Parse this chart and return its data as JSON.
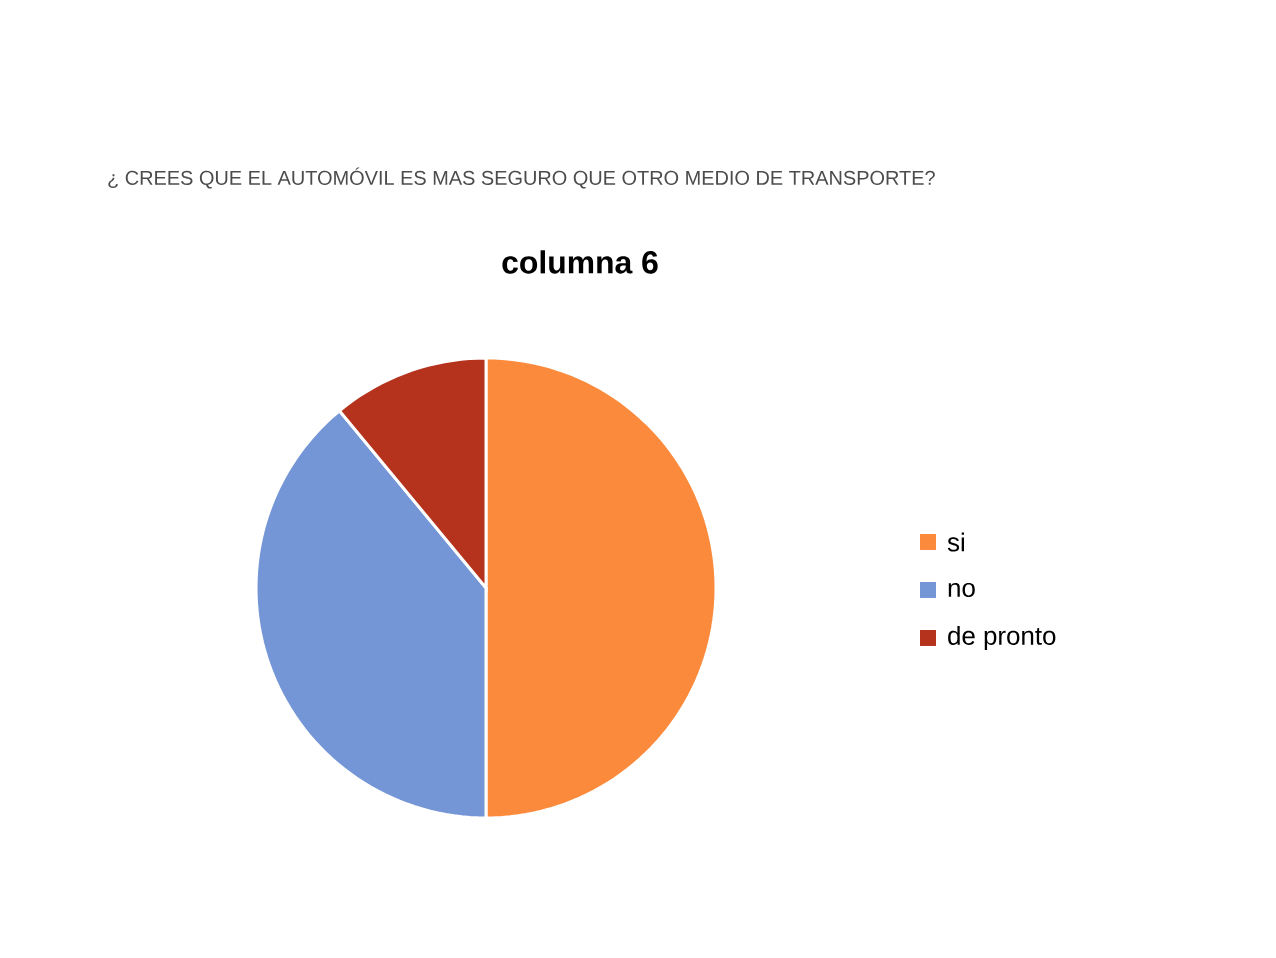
{
  "chart_data": {
    "type": "pie",
    "subtitle": "¿ CREES QUE EL AUTOMÓVIL ES MAS SEGURO QUE OTRO MEDIO DE TRANSPORTE?",
    "title": "columna 6",
    "categories": [
      "si",
      "no",
      "de pronto"
    ],
    "values": [
      50,
      39,
      11
    ],
    "colors": [
      "#fb8a3c",
      "#7596d6",
      "#b5331d"
    ],
    "legend": "right"
  }
}
